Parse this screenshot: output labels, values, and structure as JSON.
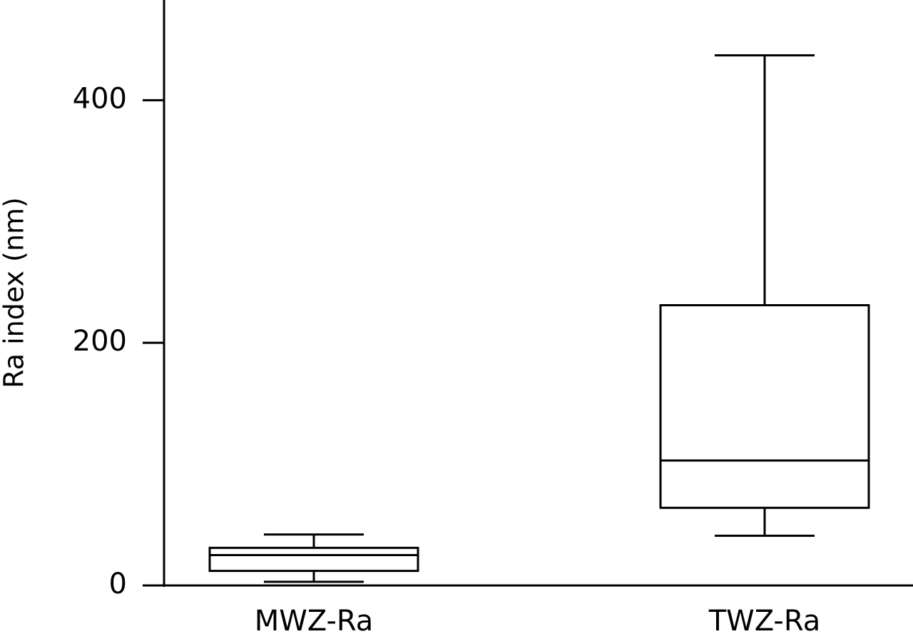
{
  "chart_data": {
    "type": "box",
    "ylabel": "Ra index (nm)",
    "categories": [
      "MWZ-Ra",
      "TWZ-Ra"
    ],
    "boxes": [
      {
        "min": 3,
        "q1": 12,
        "median": 25,
        "q3": 31,
        "max": 42
      },
      {
        "min": 41,
        "q1": 64,
        "median": 103,
        "q3": 231,
        "max": 437
      }
    ],
    "color": "#000000",
    "ylim": [
      0,
      482
    ],
    "yticks": [
      0,
      200,
      400
    ]
  }
}
